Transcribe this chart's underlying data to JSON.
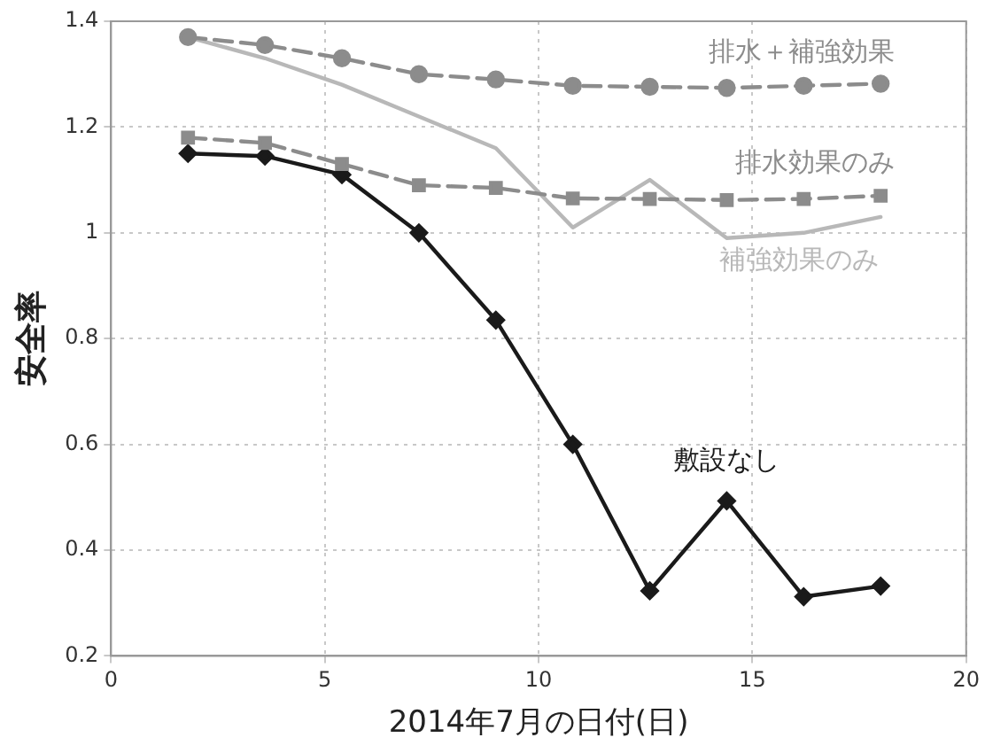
{
  "chart_data": {
    "type": "line",
    "xlabel": "2014年7月の日付(日)",
    "ylabel": "安全率",
    "x": [
      1.8,
      3.6,
      5.4,
      7.2,
      9.0,
      10.8,
      12.6,
      14.4,
      16.2,
      18.0
    ],
    "series": [
      {
        "name": "排水＋補強効果",
        "color": "#8c8c8c",
        "marker": "circle",
        "line_style": "dashed",
        "values": [
          1.37,
          1.355,
          1.33,
          1.3,
          1.29,
          1.278,
          1.276,
          1.274,
          1.278,
          1.282
        ]
      },
      {
        "name": "排水効果のみ",
        "color": "#8c8c8c",
        "marker": "square",
        "line_style": "dashed",
        "values": [
          1.18,
          1.17,
          1.13,
          1.09,
          1.085,
          1.065,
          1.064,
          1.062,
          1.064,
          1.07
        ]
      },
      {
        "name": "補強効果のみ",
        "color": "#b8b8b8",
        "marker": "none",
        "line_style": "solid",
        "values": [
          1.37,
          1.33,
          1.28,
          1.22,
          1.16,
          1.01,
          1.1,
          0.99,
          1.0,
          1.03
        ]
      },
      {
        "name": "敷設なし",
        "color": "#1a1a1a",
        "marker": "diamond",
        "line_style": "solid",
        "values": [
          1.15,
          1.145,
          1.11,
          1.0,
          0.835,
          0.6,
          0.323,
          0.493,
          0.312,
          0.332
        ]
      }
    ],
    "xlim": [
      0,
      20
    ],
    "xticks": [
      0,
      5,
      10,
      15,
      20
    ],
    "ylim": [
      0.2,
      1.4
    ],
    "yticks": [
      0.2,
      0.4,
      0.6,
      0.8,
      1,
      1.2,
      1.4
    ],
    "grid": true,
    "legend": false
  }
}
